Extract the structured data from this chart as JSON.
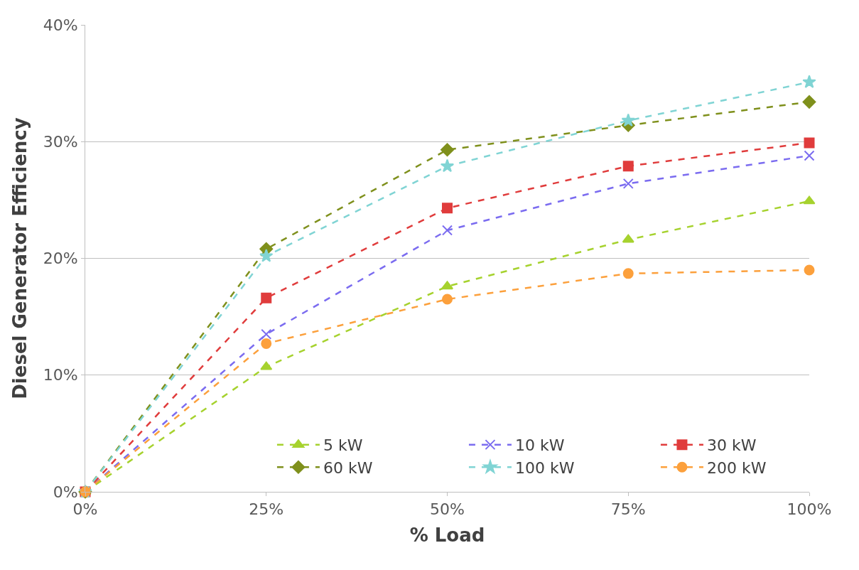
{
  "chart_data": {
    "type": "line",
    "xlabel": "% Load",
    "ylabel": "Diesel Generator Efficiency",
    "x": [
      0,
      25,
      50,
      75,
      100
    ],
    "series": [
      {
        "name": "5 kW",
        "color": "#a6d22e",
        "marker": "triangle",
        "values": [
          0,
          10.7,
          17.6,
          21.6,
          24.9
        ]
      },
      {
        "name": "10 kW",
        "color": "#7b6cf0",
        "marker": "cross",
        "values": [
          0,
          13.5,
          22.4,
          26.4,
          28.8
        ]
      },
      {
        "name": "30 kW",
        "color": "#e03c3c",
        "marker": "square",
        "values": [
          0,
          16.6,
          24.3,
          27.9,
          29.9
        ]
      },
      {
        "name": "60 kW",
        "color": "#7f901c",
        "marker": "diamond",
        "values": [
          0,
          20.8,
          29.3,
          31.4,
          33.4
        ]
      },
      {
        "name": "100 kW",
        "color": "#80d4d4",
        "marker": "star",
        "values": [
          0,
          20.2,
          27.9,
          31.8,
          35.1
        ]
      },
      {
        "name": "200 kW",
        "color": "#fca03c",
        "marker": "circle",
        "values": [
          0,
          12.7,
          16.5,
          18.7,
          19.0
        ]
      }
    ],
    "xlim": [
      0,
      100
    ],
    "xticks": [
      {
        "value": 0,
        "label": "0%"
      },
      {
        "value": 25,
        "label": "25%"
      },
      {
        "value": 50,
        "label": "50%"
      },
      {
        "value": 75,
        "label": "75%"
      },
      {
        "value": 100,
        "label": "100%"
      }
    ],
    "ylim": [
      0,
      40
    ],
    "yticks": [
      {
        "value": 0,
        "label": "0%"
      },
      {
        "value": 10,
        "label": "10%"
      },
      {
        "value": 20,
        "label": "20%"
      },
      {
        "value": 30,
        "label": "30%"
      },
      {
        "value": 40,
        "label": "40%"
      }
    ],
    "grid": "y",
    "legend": "bottom right",
    "line_style": "dashed"
  }
}
